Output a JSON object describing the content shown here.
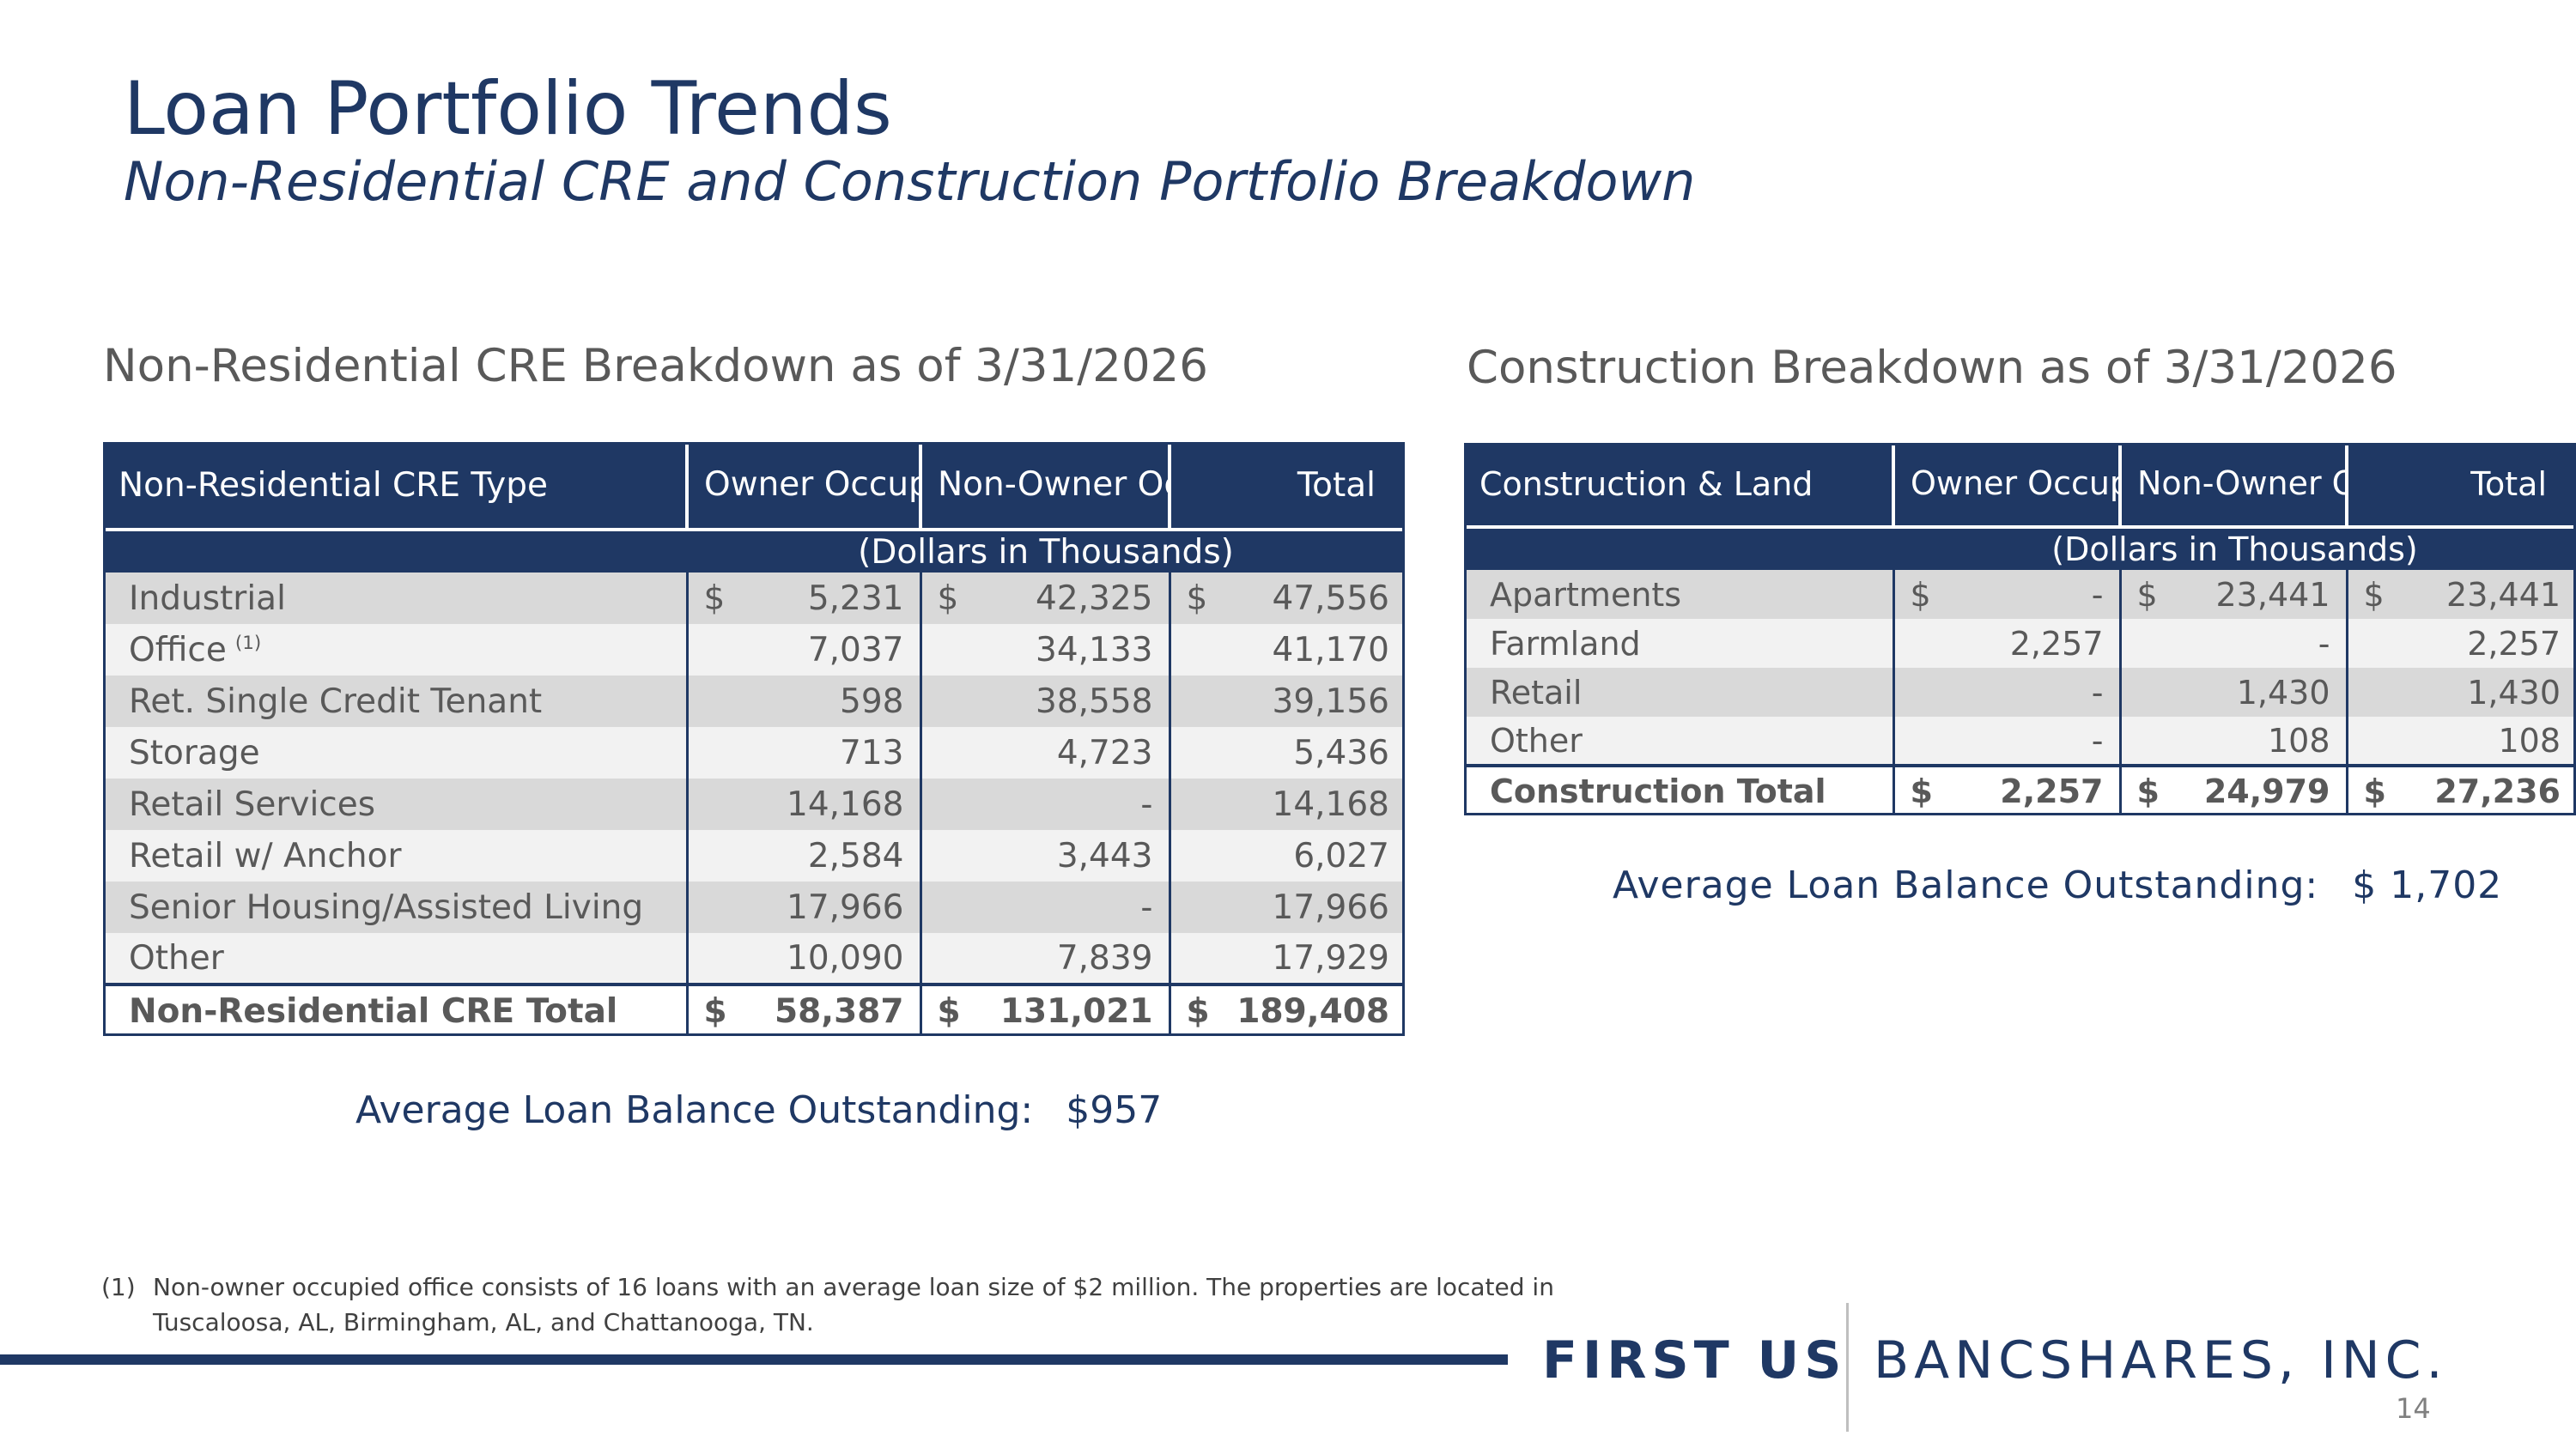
{
  "header": {
    "title": "Loan Portfolio Trends",
    "subtitle": "Non-Residential CRE and Construction Portfolio Breakdown"
  },
  "cre": {
    "heading": "Non-Residential CRE Breakdown as of 3/31/2026",
    "col_type": "Non-Residential CRE Type",
    "col_owner": "Owner Occupied",
    "col_nonowner": "Non-Owner Occupied",
    "col_total": "Total",
    "units": "(Dollars in Thousands)",
    "rows": [
      {
        "label": "Industrial",
        "owner_cur": "$",
        "owner": "5,231",
        "non_cur": "$",
        "non": "42,325",
        "tot_cur": "$",
        "tot": "47,556"
      },
      {
        "label": "Office",
        "sup": "(1)",
        "owner_cur": "",
        "owner": "7,037",
        "non_cur": "",
        "non": "34,133",
        "tot_cur": "",
        "tot": "41,170"
      },
      {
        "label": "Ret. Single Credit Tenant",
        "owner_cur": "",
        "owner": "598",
        "non_cur": "",
        "non": "38,558",
        "tot_cur": "",
        "tot": "39,156"
      },
      {
        "label": "Storage",
        "owner_cur": "",
        "owner": "713",
        "non_cur": "",
        "non": "4,723",
        "tot_cur": "",
        "tot": "5,436"
      },
      {
        "label": "Retail Services",
        "owner_cur": "",
        "owner": "14,168",
        "non_cur": "",
        "non": "-",
        "tot_cur": "",
        "tot": "14,168"
      },
      {
        "label": "Retail w/ Anchor",
        "owner_cur": "",
        "owner": "2,584",
        "non_cur": "",
        "non": "3,443",
        "tot_cur": "",
        "tot": "6,027"
      },
      {
        "label": "Senior Housing/Assisted Living",
        "owner_cur": "",
        "owner": "17,966",
        "non_cur": "",
        "non": "-",
        "tot_cur": "",
        "tot": "17,966"
      },
      {
        "label": "Other",
        "owner_cur": "",
        "owner": "10,090",
        "non_cur": "",
        "non": "7,839",
        "tot_cur": "",
        "tot": "17,929"
      }
    ],
    "total": {
      "label": "Non-Residential CRE Total",
      "owner_cur": "$",
      "owner": "58,387",
      "non_cur": "$",
      "non": "131,021",
      "tot_cur": "$",
      "tot": "189,408"
    },
    "avg_label": "Average Loan Balance Outstanding:",
    "avg_value": "$957"
  },
  "construction": {
    "heading": "Construction Breakdown as of 3/31/2026",
    "col_type": "Construction & Land",
    "col_owner": "Owner Occupied",
    "col_nonowner": "Non-Owner Occupied",
    "col_total": "Total",
    "units": "(Dollars in Thousands)",
    "rows": [
      {
        "label": "Apartments",
        "owner_cur": "$",
        "owner": "-",
        "non_cur": "$",
        "non": "23,441",
        "tot_cur": "$",
        "tot": "23,441"
      },
      {
        "label": "Farmland",
        "owner_cur": "",
        "owner": "2,257",
        "non_cur": "",
        "non": "-",
        "tot_cur": "",
        "tot": "2,257"
      },
      {
        "label": "Retail",
        "owner_cur": "",
        "owner": "-",
        "non_cur": "",
        "non": "1,430",
        "tot_cur": "",
        "tot": "1,430"
      },
      {
        "label": "Other",
        "owner_cur": "",
        "owner": "-",
        "non_cur": "",
        "non": "108",
        "tot_cur": "",
        "tot": "108"
      }
    ],
    "total": {
      "label": "Construction Total",
      "owner_cur": "$",
      "owner": "2,257",
      "non_cur": "$",
      "non": "24,979",
      "tot_cur": "$",
      "tot": "27,236"
    },
    "avg_label": "Average Loan Balance Outstanding:",
    "avg_value": "$ 1,702"
  },
  "footnote": {
    "marker": "(1)",
    "text": "Non-owner occupied office consists of 16 loans with an average loan size of $2 million. The properties are located in Tuscaloosa, AL, Birmingham, AL, and Chattanooga, TN."
  },
  "logo": {
    "bold": "FIRST US",
    "light": "BANCSHARES, INC."
  },
  "page_number": "14",
  "colors": {
    "navy": "#1f3864",
    "row_dark": "#d9d9d9",
    "row_light": "#f2f2f2",
    "text_gray": "#595959"
  }
}
